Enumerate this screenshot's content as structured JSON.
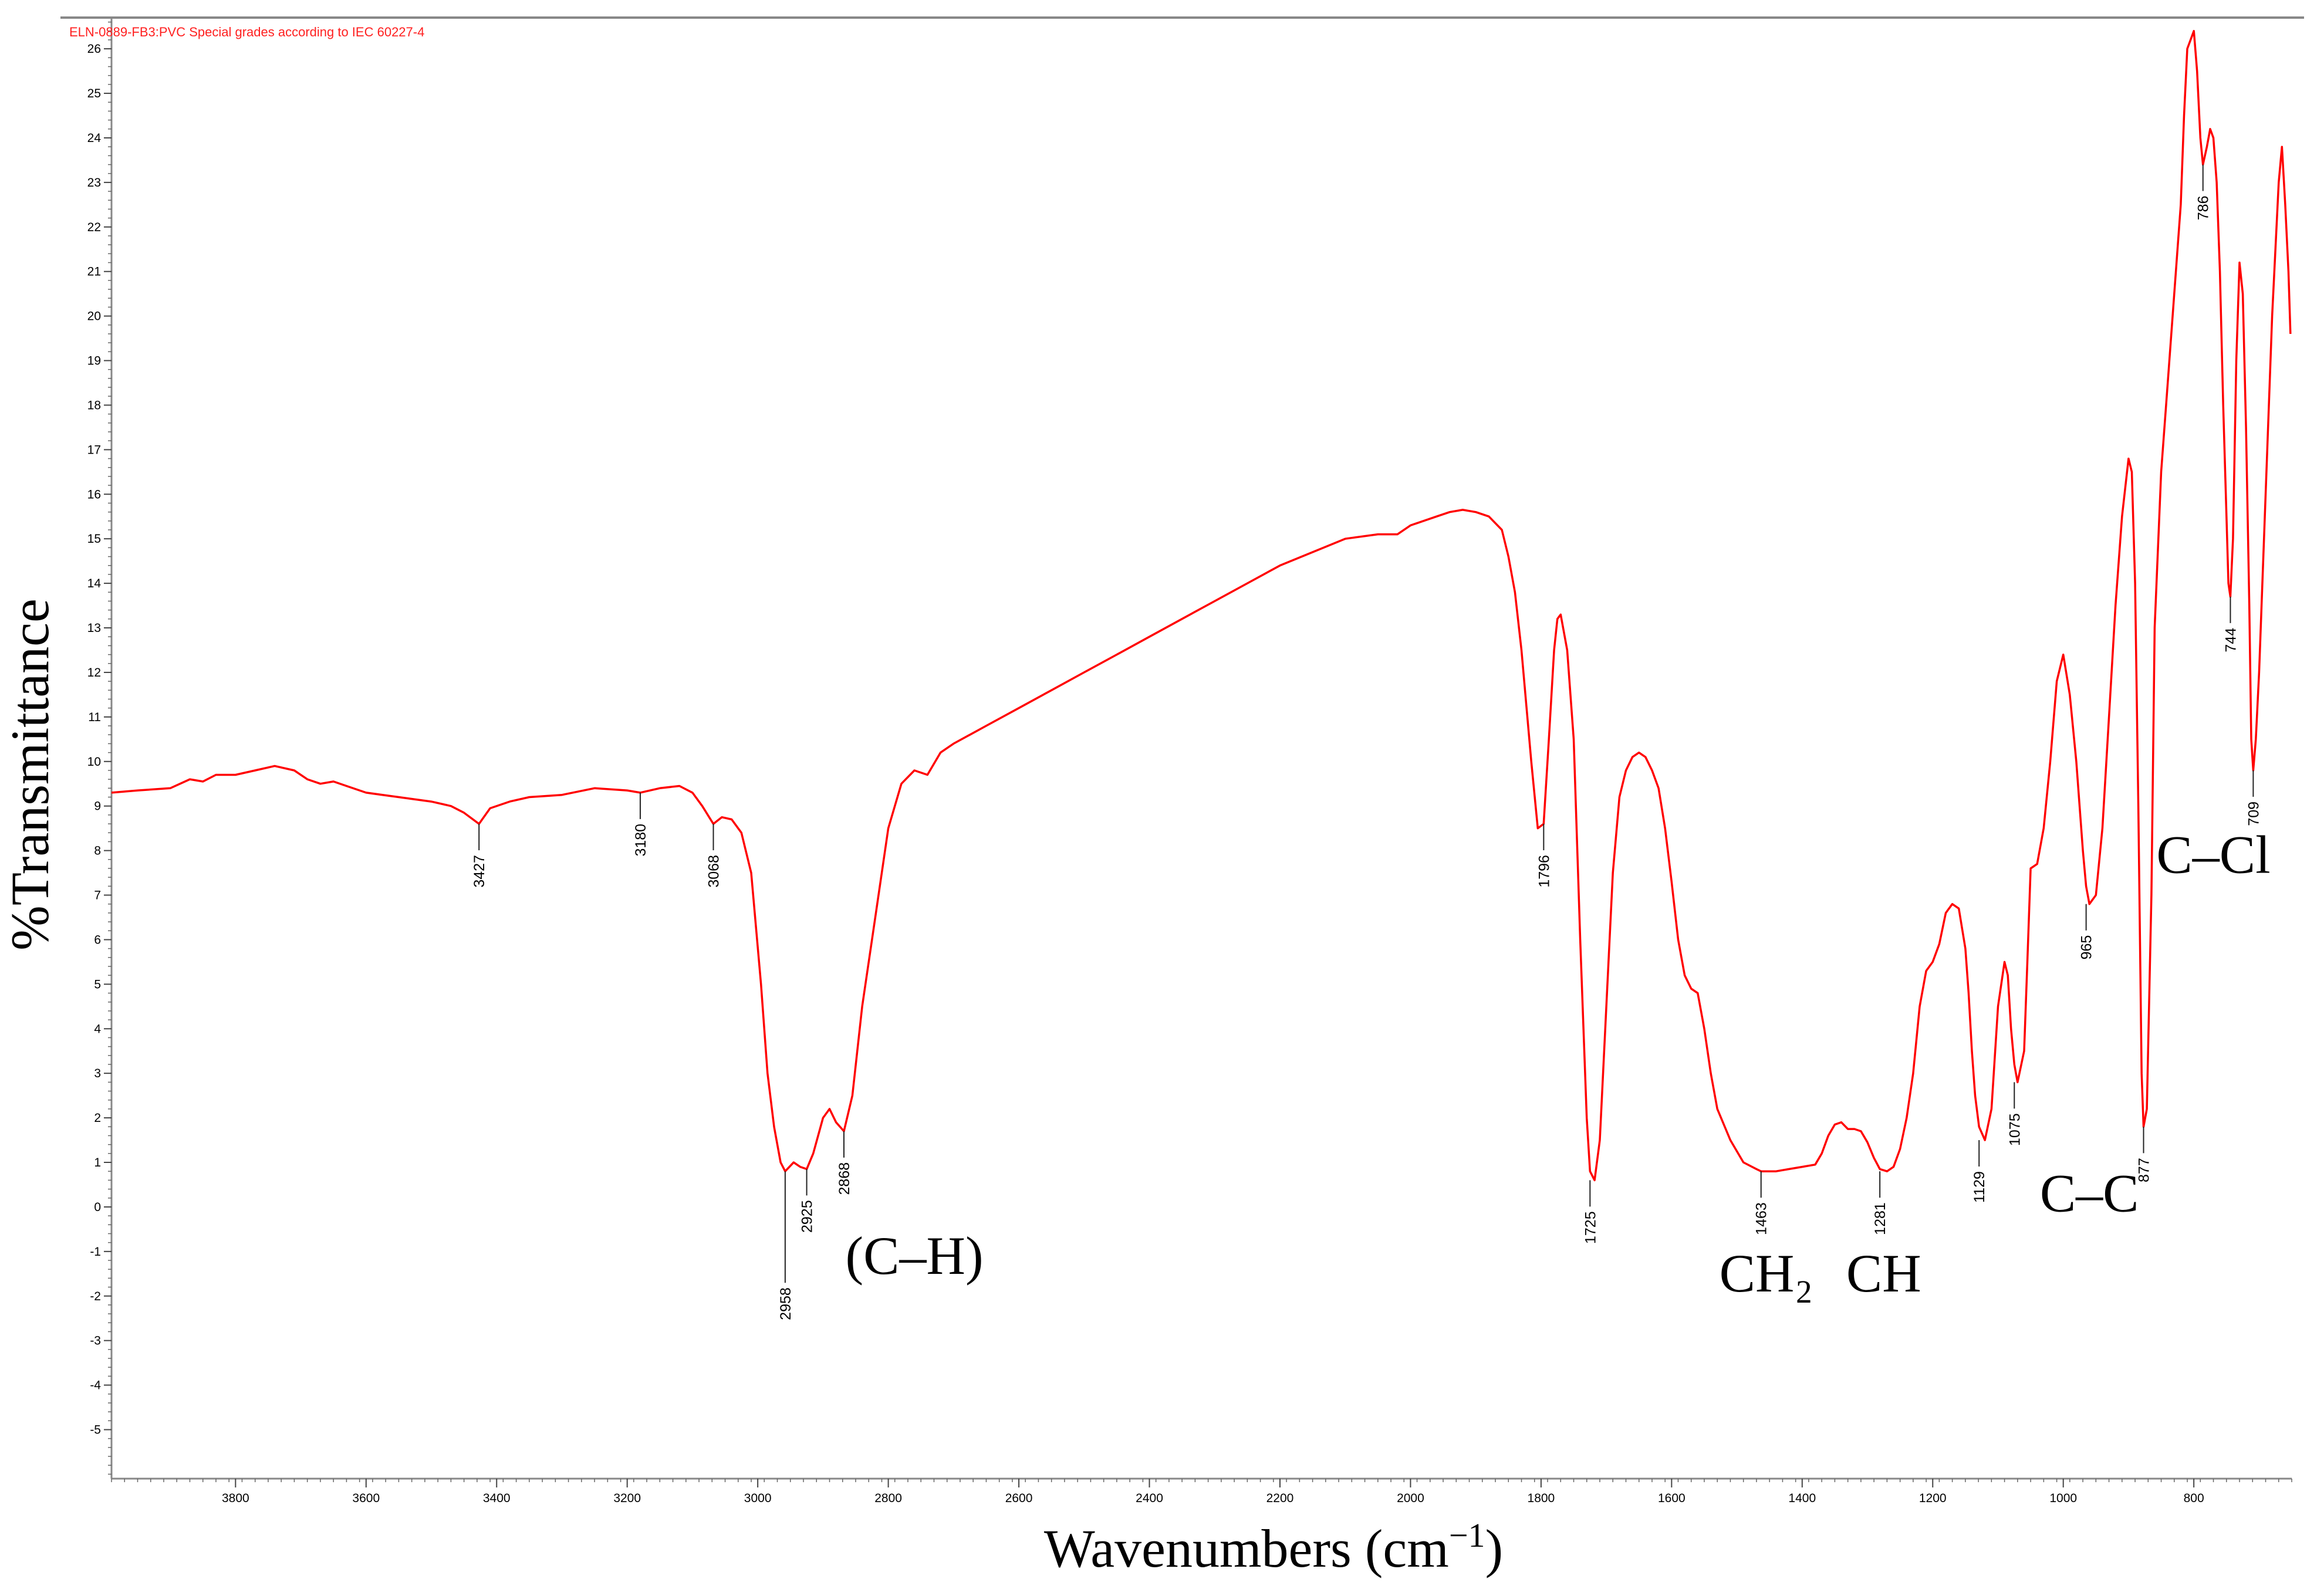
{
  "chart_data": {
    "type": "line",
    "title": "ELN-0889-FB3:PVC Special grades according to IEC 60227-4",
    "xlabel": "Wavenumbers (cm",
    "xlabel_sup": "−1",
    "xlabel_end": ")",
    "ylabel": "%Transmittance",
    "xlim": [
      3990,
      650
    ],
    "ylim": [
      -6.1,
      26.7
    ],
    "x_reversed": true,
    "grid": false,
    "x_ticks": [
      3800,
      3600,
      3400,
      3200,
      3000,
      2800,
      2600,
      2400,
      2200,
      2000,
      1800,
      1600,
      1400,
      1200,
      1000,
      800
    ],
    "y_ticks": [
      -5,
      -4,
      -3,
      -2,
      -1,
      0,
      1,
      2,
      3,
      4,
      5,
      6,
      7,
      8,
      9,
      10,
      11,
      12,
      13,
      14,
      15,
      16,
      17,
      18,
      19,
      20,
      21,
      22,
      23,
      24,
      25,
      26
    ],
    "line_color": "#ff0000",
    "series": [
      {
        "x": [
          3990,
          3950,
          3900,
          3870,
          3850,
          3830,
          3800,
          3770,
          3740,
          3710,
          3690,
          3670,
          3650,
          3630,
          3600,
          3550,
          3500,
          3470,
          3450,
          3427,
          3410,
          3380,
          3350,
          3300,
          3250,
          3200,
          3180,
          3150,
          3120,
          3100,
          3085,
          3068,
          3055,
          3040,
          3025,
          3010,
          2995,
          2985,
          2975,
          2965,
          2958,
          2945,
          2935,
          2925,
          2915,
          2900,
          2890,
          2880,
          2868,
          2855,
          2840,
          2820,
          2800,
          2780,
          2760,
          2740,
          2720,
          2700,
          2650,
          2600,
          2550,
          2500,
          2450,
          2400,
          2350,
          2300,
          2250,
          2200,
          2150,
          2100,
          2050,
          2020,
          2000,
          1960,
          1940,
          1920,
          1900,
          1880,
          1860,
          1850,
          1840,
          1830,
          1815,
          1805,
          1796,
          1788,
          1780,
          1775,
          1770,
          1760,
          1750,
          1740,
          1730,
          1725,
          1718,
          1710,
          1700,
          1690,
          1680,
          1670,
          1660,
          1650,
          1640,
          1630,
          1620,
          1610,
          1600,
          1590,
          1580,
          1570,
          1560,
          1550,
          1540,
          1530,
          1510,
          1490,
          1470,
          1463,
          1440,
          1420,
          1400,
          1380,
          1370,
          1360,
          1350,
          1340,
          1330,
          1320,
          1310,
          1300,
          1290,
          1281,
          1270,
          1260,
          1250,
          1240,
          1230,
          1220,
          1210,
          1200,
          1190,
          1180,
          1170,
          1160,
          1150,
          1145,
          1140,
          1135,
          1129,
          1120,
          1110,
          1100,
          1090,
          1085,
          1080,
          1075,
          1070,
          1060,
          1055,
          1050,
          1040,
          1030,
          1020,
          1010,
          1000,
          990,
          980,
          975,
          970,
          965,
          960,
          950,
          940,
          930,
          920,
          910,
          900,
          895,
          890,
          885,
          880,
          877,
          872,
          865,
          860,
          850,
          840,
          830,
          820,
          815,
          810,
          800,
          795,
          790,
          786,
          780,
          775,
          770,
          765,
          760,
          755,
          750,
          747,
          744,
          740,
          735,
          730,
          725,
          720,
          715,
          712,
          709,
          705,
          700,
          690,
          680,
          670,
          665,
          660,
          655,
          652
        ],
        "y": [
          9.3,
          9.35,
          9.4,
          9.6,
          9.55,
          9.7,
          9.7,
          9.8,
          9.9,
          9.8,
          9.6,
          9.5,
          9.55,
          9.45,
          9.3,
          9.2,
          9.1,
          9.0,
          8.85,
          8.6,
          8.95,
          9.1,
          9.2,
          9.25,
          9.4,
          9.35,
          9.3,
          9.4,
          9.45,
          9.3,
          9.0,
          8.6,
          8.75,
          8.7,
          8.4,
          7.5,
          5.0,
          3.0,
          1.8,
          1.0,
          0.8,
          1.0,
          0.9,
          0.85,
          1.2,
          2.0,
          2.2,
          1.9,
          1.7,
          2.5,
          4.5,
          6.5,
          8.5,
          9.5,
          9.8,
          9.7,
          10.2,
          10.4,
          10.8,
          11.2,
          11.6,
          12.0,
          12.4,
          12.8,
          13.2,
          13.6,
          14.0,
          14.4,
          14.7,
          15.0,
          15.1,
          15.1,
          15.3,
          15.5,
          15.6,
          15.65,
          15.6,
          15.5,
          15.2,
          14.6,
          13.8,
          12.5,
          10.0,
          8.5,
          8.6,
          10.5,
          12.5,
          13.2,
          13.3,
          12.5,
          10.5,
          6.0,
          2.0,
          0.8,
          0.6,
          1.5,
          4.5,
          7.5,
          9.2,
          9.8,
          10.1,
          10.2,
          10.1,
          9.8,
          9.4,
          8.5,
          7.3,
          6.0,
          5.2,
          4.9,
          4.8,
          4.0,
          3.0,
          2.2,
          1.5,
          1.0,
          0.85,
          0.8,
          0.8,
          0.85,
          0.9,
          0.95,
          1.2,
          1.6,
          1.85,
          1.9,
          1.75,
          1.75,
          1.7,
          1.45,
          1.1,
          0.85,
          0.8,
          0.9,
          1.3,
          2.0,
          3.0,
          4.5,
          5.3,
          5.5,
          5.9,
          6.6,
          6.8,
          6.7,
          5.8,
          4.8,
          3.5,
          2.5,
          1.8,
          1.5,
          2.2,
          4.5,
          5.5,
          5.2,
          4.0,
          3.2,
          2.8,
          3.5,
          5.5,
          7.6,
          7.7,
          8.5,
          10.0,
          11.8,
          12.4,
          11.5,
          10.0,
          9.0,
          8.0,
          7.2,
          6.8,
          7.0,
          8.5,
          11.0,
          13.5,
          15.5,
          16.8,
          16.5,
          14.0,
          9.0,
          3.0,
          1.8,
          2.2,
          7.0,
          13.0,
          16.5,
          18.5,
          20.5,
          22.5,
          24.5,
          26.0,
          26.4,
          25.5,
          24.0,
          23.4,
          23.8,
          24.2,
          24.0,
          23.0,
          21.0,
          18.0,
          15.5,
          14.0,
          13.7,
          15.0,
          19.0,
          21.2,
          20.5,
          17.5,
          13.5,
          10.5,
          9.8,
          10.5,
          12.0,
          16.0,
          20.0,
          23.0,
          23.8,
          22.5,
          21.0,
          19.6
        ]
      }
    ],
    "peak_labels": [
      {
        "x": 3427,
        "y": 8.6,
        "label": "3427"
      },
      {
        "x": 3180,
        "y": 9.3,
        "label": "3180"
      },
      {
        "x": 3068,
        "y": 8.6,
        "label": "3068"
      },
      {
        "x": 2958,
        "y": 0.8,
        "label": "2958"
      },
      {
        "x": 2925,
        "y": 0.85,
        "label": "2925"
      },
      {
        "x": 2868,
        "y": 1.7,
        "label": "2868"
      },
      {
        "x": 1796,
        "y": 8.6,
        "label": "1796"
      },
      {
        "x": 1725,
        "y": 0.6,
        "label": "1725"
      },
      {
        "x": 1463,
        "y": 0.8,
        "label": "1463"
      },
      {
        "x": 1281,
        "y": 0.8,
        "label": "1281"
      },
      {
        "x": 1129,
        "y": 1.5,
        "label": "1129"
      },
      {
        "x": 1075,
        "y": 2.8,
        "label": "1075"
      },
      {
        "x": 965,
        "y": 6.8,
        "label": "965"
      },
      {
        "x": 877,
        "y": 1.8,
        "label": "877"
      },
      {
        "x": 786,
        "y": 23.4,
        "label": "786"
      },
      {
        "x": 744,
        "y": 13.7,
        "label": "744"
      },
      {
        "x": 709,
        "y": 9.8,
        "label": "709"
      }
    ],
    "annotations": [
      {
        "x": 2760,
        "y": -1.5,
        "label": "(C–H)"
      },
      {
        "x": 1455,
        "y": -1.9,
        "label": "CH₂"
      },
      {
        "x": 1275,
        "y": -1.9,
        "label": "CH"
      },
      {
        "x": 960,
        "y": -0.1,
        "label": "C–C"
      },
      {
        "x": 770,
        "y": 7.5,
        "label": "C–Cl"
      }
    ]
  }
}
